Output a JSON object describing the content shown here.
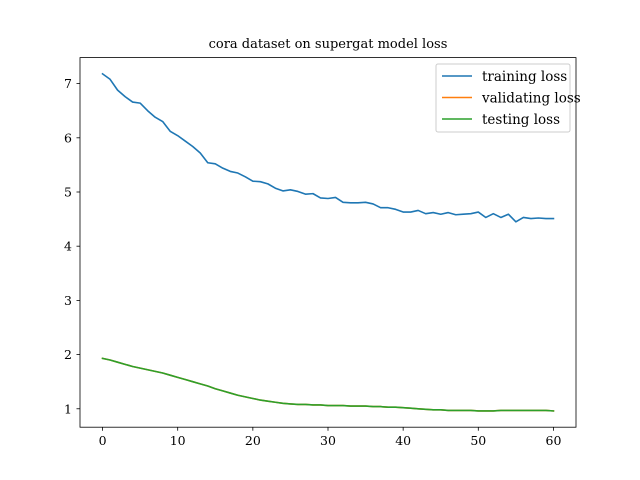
{
  "chart_data": {
    "type": "line",
    "title": "cora dataset on supergat model loss",
    "xlabel": "",
    "ylabel": "",
    "xlim": [
      -3,
      63
    ],
    "ylim": [
      0.66,
      7.48
    ],
    "xticks": [
      "0",
      "10",
      "20",
      "30",
      "40",
      "50",
      "60"
    ],
    "yticks": [
      "1",
      "2",
      "3",
      "4",
      "5",
      "6",
      "7"
    ],
    "grid": false,
    "legend_position": "top-right",
    "x": [
      0,
      1,
      2,
      3,
      4,
      5,
      6,
      7,
      8,
      9,
      10,
      11,
      12,
      13,
      14,
      15,
      16,
      17,
      18,
      19,
      20,
      21,
      22,
      23,
      24,
      25,
      26,
      27,
      28,
      29,
      30,
      31,
      32,
      33,
      34,
      35,
      36,
      37,
      38,
      39,
      40,
      41,
      42,
      43,
      44,
      45,
      46,
      47,
      48,
      49,
      50,
      51,
      52,
      53,
      54,
      55,
      56,
      57,
      58,
      59,
      60
    ],
    "series": [
      {
        "name": "training loss",
        "color": "#1f77b4",
        "values": [
          7.18,
          7.08,
          6.88,
          6.76,
          6.66,
          6.64,
          6.5,
          6.38,
          6.3,
          6.12,
          6.04,
          5.94,
          5.84,
          5.72,
          5.54,
          5.52,
          5.44,
          5.38,
          5.35,
          5.28,
          5.2,
          5.19,
          5.15,
          5.07,
          5.02,
          5.04,
          5.01,
          4.96,
          4.97,
          4.89,
          4.88,
          4.9,
          4.81,
          4.8,
          4.8,
          4.81,
          4.78,
          4.71,
          4.71,
          4.68,
          4.63,
          4.63,
          4.66,
          4.6,
          4.62,
          4.59,
          4.62,
          4.58,
          4.59,
          4.6,
          4.63,
          4.53,
          4.6,
          4.53,
          4.59,
          4.45,
          4.53,
          4.51,
          4.52,
          4.51,
          4.51
        ]
      },
      {
        "name": "validating loss",
        "color": "#ff7f0e",
        "values": [
          1.93,
          1.9,
          1.86,
          1.82,
          1.78,
          1.75,
          1.72,
          1.69,
          1.66,
          1.62,
          1.58,
          1.54,
          1.5,
          1.46,
          1.42,
          1.37,
          1.33,
          1.29,
          1.25,
          1.22,
          1.19,
          1.16,
          1.14,
          1.12,
          1.1,
          1.09,
          1.08,
          1.08,
          1.07,
          1.07,
          1.06,
          1.06,
          1.06,
          1.05,
          1.05,
          1.05,
          1.04,
          1.04,
          1.03,
          1.03,
          1.02,
          1.01,
          1.0,
          0.99,
          0.98,
          0.98,
          0.97,
          0.97,
          0.97,
          0.97,
          0.96,
          0.96,
          0.96,
          0.97,
          0.97,
          0.97,
          0.97,
          0.97,
          0.97,
          0.97,
          0.96
        ]
      },
      {
        "name": "testing loss",
        "color": "#2ca02c",
        "values": [
          1.93,
          1.9,
          1.86,
          1.82,
          1.78,
          1.75,
          1.72,
          1.69,
          1.66,
          1.62,
          1.58,
          1.54,
          1.5,
          1.46,
          1.42,
          1.37,
          1.33,
          1.29,
          1.25,
          1.22,
          1.19,
          1.16,
          1.14,
          1.12,
          1.1,
          1.09,
          1.08,
          1.08,
          1.07,
          1.07,
          1.06,
          1.06,
          1.06,
          1.05,
          1.05,
          1.05,
          1.04,
          1.04,
          1.03,
          1.03,
          1.02,
          1.01,
          1.0,
          0.99,
          0.98,
          0.98,
          0.97,
          0.97,
          0.97,
          0.97,
          0.96,
          0.96,
          0.96,
          0.97,
          0.97,
          0.97,
          0.97,
          0.97,
          0.97,
          0.97,
          0.96
        ]
      }
    ]
  }
}
